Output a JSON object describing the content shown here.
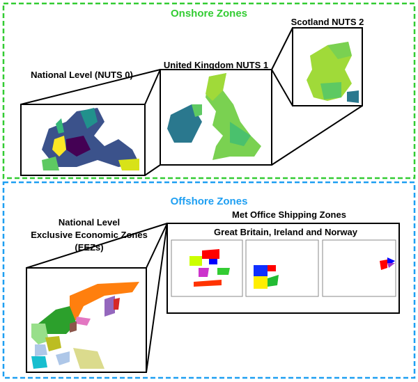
{
  "onshore": {
    "title": "Onshore Zones",
    "color": "#33cc33",
    "panels": {
      "nuts0": "National Level (NUTS 0)",
      "nuts1": "United Kingdom NUTS 1",
      "nuts2": "Scotland NUTS 2"
    }
  },
  "offshore": {
    "title": "Offshore Zones",
    "color": "#1e9ff2",
    "eez": {
      "line1": "National Level",
      "line2": "Exclusive Economic Zones",
      "line3": "(EEZs)"
    },
    "shipping": {
      "title": "Met Office Shipping Zones",
      "subtitle": "Great Britain, Ireland and Norway",
      "panel_count": 3
    }
  }
}
